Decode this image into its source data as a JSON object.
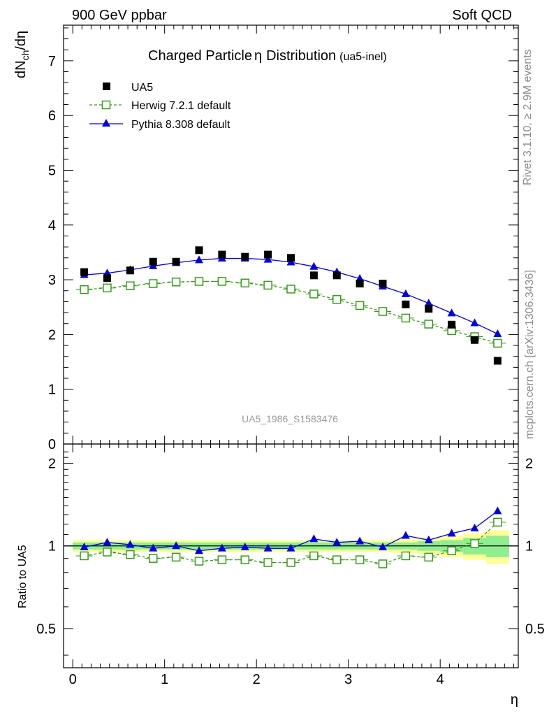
{
  "header": {
    "left": "900 GeV ppbar",
    "right": "Soft QCD"
  },
  "side_labels": {
    "rivet": "Rivet 3.1.10, ≥ 2.9M events",
    "mcplots": "mcplots.cern.ch [arXiv:1306.3436]"
  },
  "chart_data": {
    "type": "scatter",
    "title_main": "Charged Particle",
    "title_symbol": "η",
    "title_rest": "Distribution",
    "title_tag": "(ua5-inel)",
    "watermark": "UA5_1986_S1583476",
    "xlabel": "η",
    "ylabel_main": "dN",
    "ylabel_sub": "ch",
    "ylabel_tail": "/dη",
    "ratio_ylabel": "Ratio to UA5",
    "xlim": [
      -0.1,
      4.85
    ],
    "ylim": [
      0,
      7.65
    ],
    "ratio_ylim": [
      0.36,
      2.35
    ],
    "ratio_scale": "log",
    "x_ticks": [
      0,
      1,
      2,
      3,
      4
    ],
    "x_tick_labels": [
      "0",
      "1",
      "2",
      "3",
      "4"
    ],
    "y_ticks": [
      0,
      1,
      2,
      3,
      4,
      5,
      6,
      7
    ],
    "y_tick_labels": [
      "0",
      "1",
      "2",
      "3",
      "4",
      "5",
      "6",
      "7"
    ],
    "ratio_ticks": [
      0.5,
      1,
      2
    ],
    "ratio_tick_labels": [
      "0.5",
      "1",
      "2"
    ],
    "x": [
      0.125,
      0.375,
      0.625,
      0.875,
      1.125,
      1.375,
      1.625,
      1.875,
      2.125,
      2.375,
      2.625,
      2.875,
      3.125,
      3.375,
      3.625,
      3.875,
      4.125,
      4.375,
      4.625
    ],
    "series": [
      {
        "name": "UA5",
        "marker": "square-filled",
        "color": "#000000",
        "values": [
          3.14,
          3.03,
          3.17,
          3.33,
          3.33,
          3.54,
          3.46,
          3.42,
          3.46,
          3.4,
          3.08,
          3.08,
          2.93,
          2.93,
          2.55,
          2.47,
          2.18,
          1.9,
          1.52
        ]
      },
      {
        "name": "Herwig 7.2.1 default",
        "marker": "square-open",
        "line": "dashed",
        "color": "#3a9a1c",
        "values": [
          2.82,
          2.85,
          2.89,
          2.93,
          2.96,
          2.97,
          2.97,
          2.94,
          2.9,
          2.83,
          2.74,
          2.64,
          2.53,
          2.42,
          2.3,
          2.19,
          2.07,
          1.96,
          1.84
        ]
      },
      {
        "name": "Pythia 8.308 default",
        "marker": "triangle",
        "line": "solid",
        "color": "#0000e0",
        "values": [
          3.09,
          3.12,
          3.18,
          3.25,
          3.31,
          3.36,
          3.39,
          3.39,
          3.37,
          3.32,
          3.24,
          3.14,
          3.02,
          2.88,
          2.74,
          2.57,
          2.39,
          2.21,
          2.01
        ]
      }
    ],
    "ratio_series": [
      {
        "name": "Herwig 7.2.1 default",
        "values": [
          0.92,
          0.95,
          0.93,
          0.9,
          0.91,
          0.88,
          0.89,
          0.89,
          0.87,
          0.87,
          0.92,
          0.89,
          0.89,
          0.86,
          0.92,
          0.91,
          0.96,
          1.02,
          1.22
        ]
      },
      {
        "name": "Pythia 8.308 default",
        "values": [
          0.99,
          1.03,
          1.01,
          0.98,
          1.0,
          0.96,
          0.98,
          0.99,
          0.98,
          0.98,
          1.06,
          1.03,
          1.04,
          0.99,
          1.09,
          1.05,
          1.11,
          1.16,
          1.34
        ]
      }
    ],
    "ratio_band_inner": [
      0.03,
      0.03,
      0.03,
      0.03,
      0.03,
      0.03,
      0.03,
      0.03,
      0.03,
      0.03,
      0.03,
      0.03,
      0.03,
      0.03,
      0.03,
      0.04,
      0.05,
      0.07,
      0.09
    ],
    "ratio_band_outer": [
      0.05,
      0.05,
      0.05,
      0.05,
      0.05,
      0.05,
      0.05,
      0.05,
      0.05,
      0.05,
      0.05,
      0.05,
      0.05,
      0.05,
      0.06,
      0.07,
      0.09,
      0.11,
      0.14
    ],
    "band_colors": {
      "inner": "#90ee90",
      "outer": "#ffff99"
    },
    "legend_placement": "top-left"
  }
}
